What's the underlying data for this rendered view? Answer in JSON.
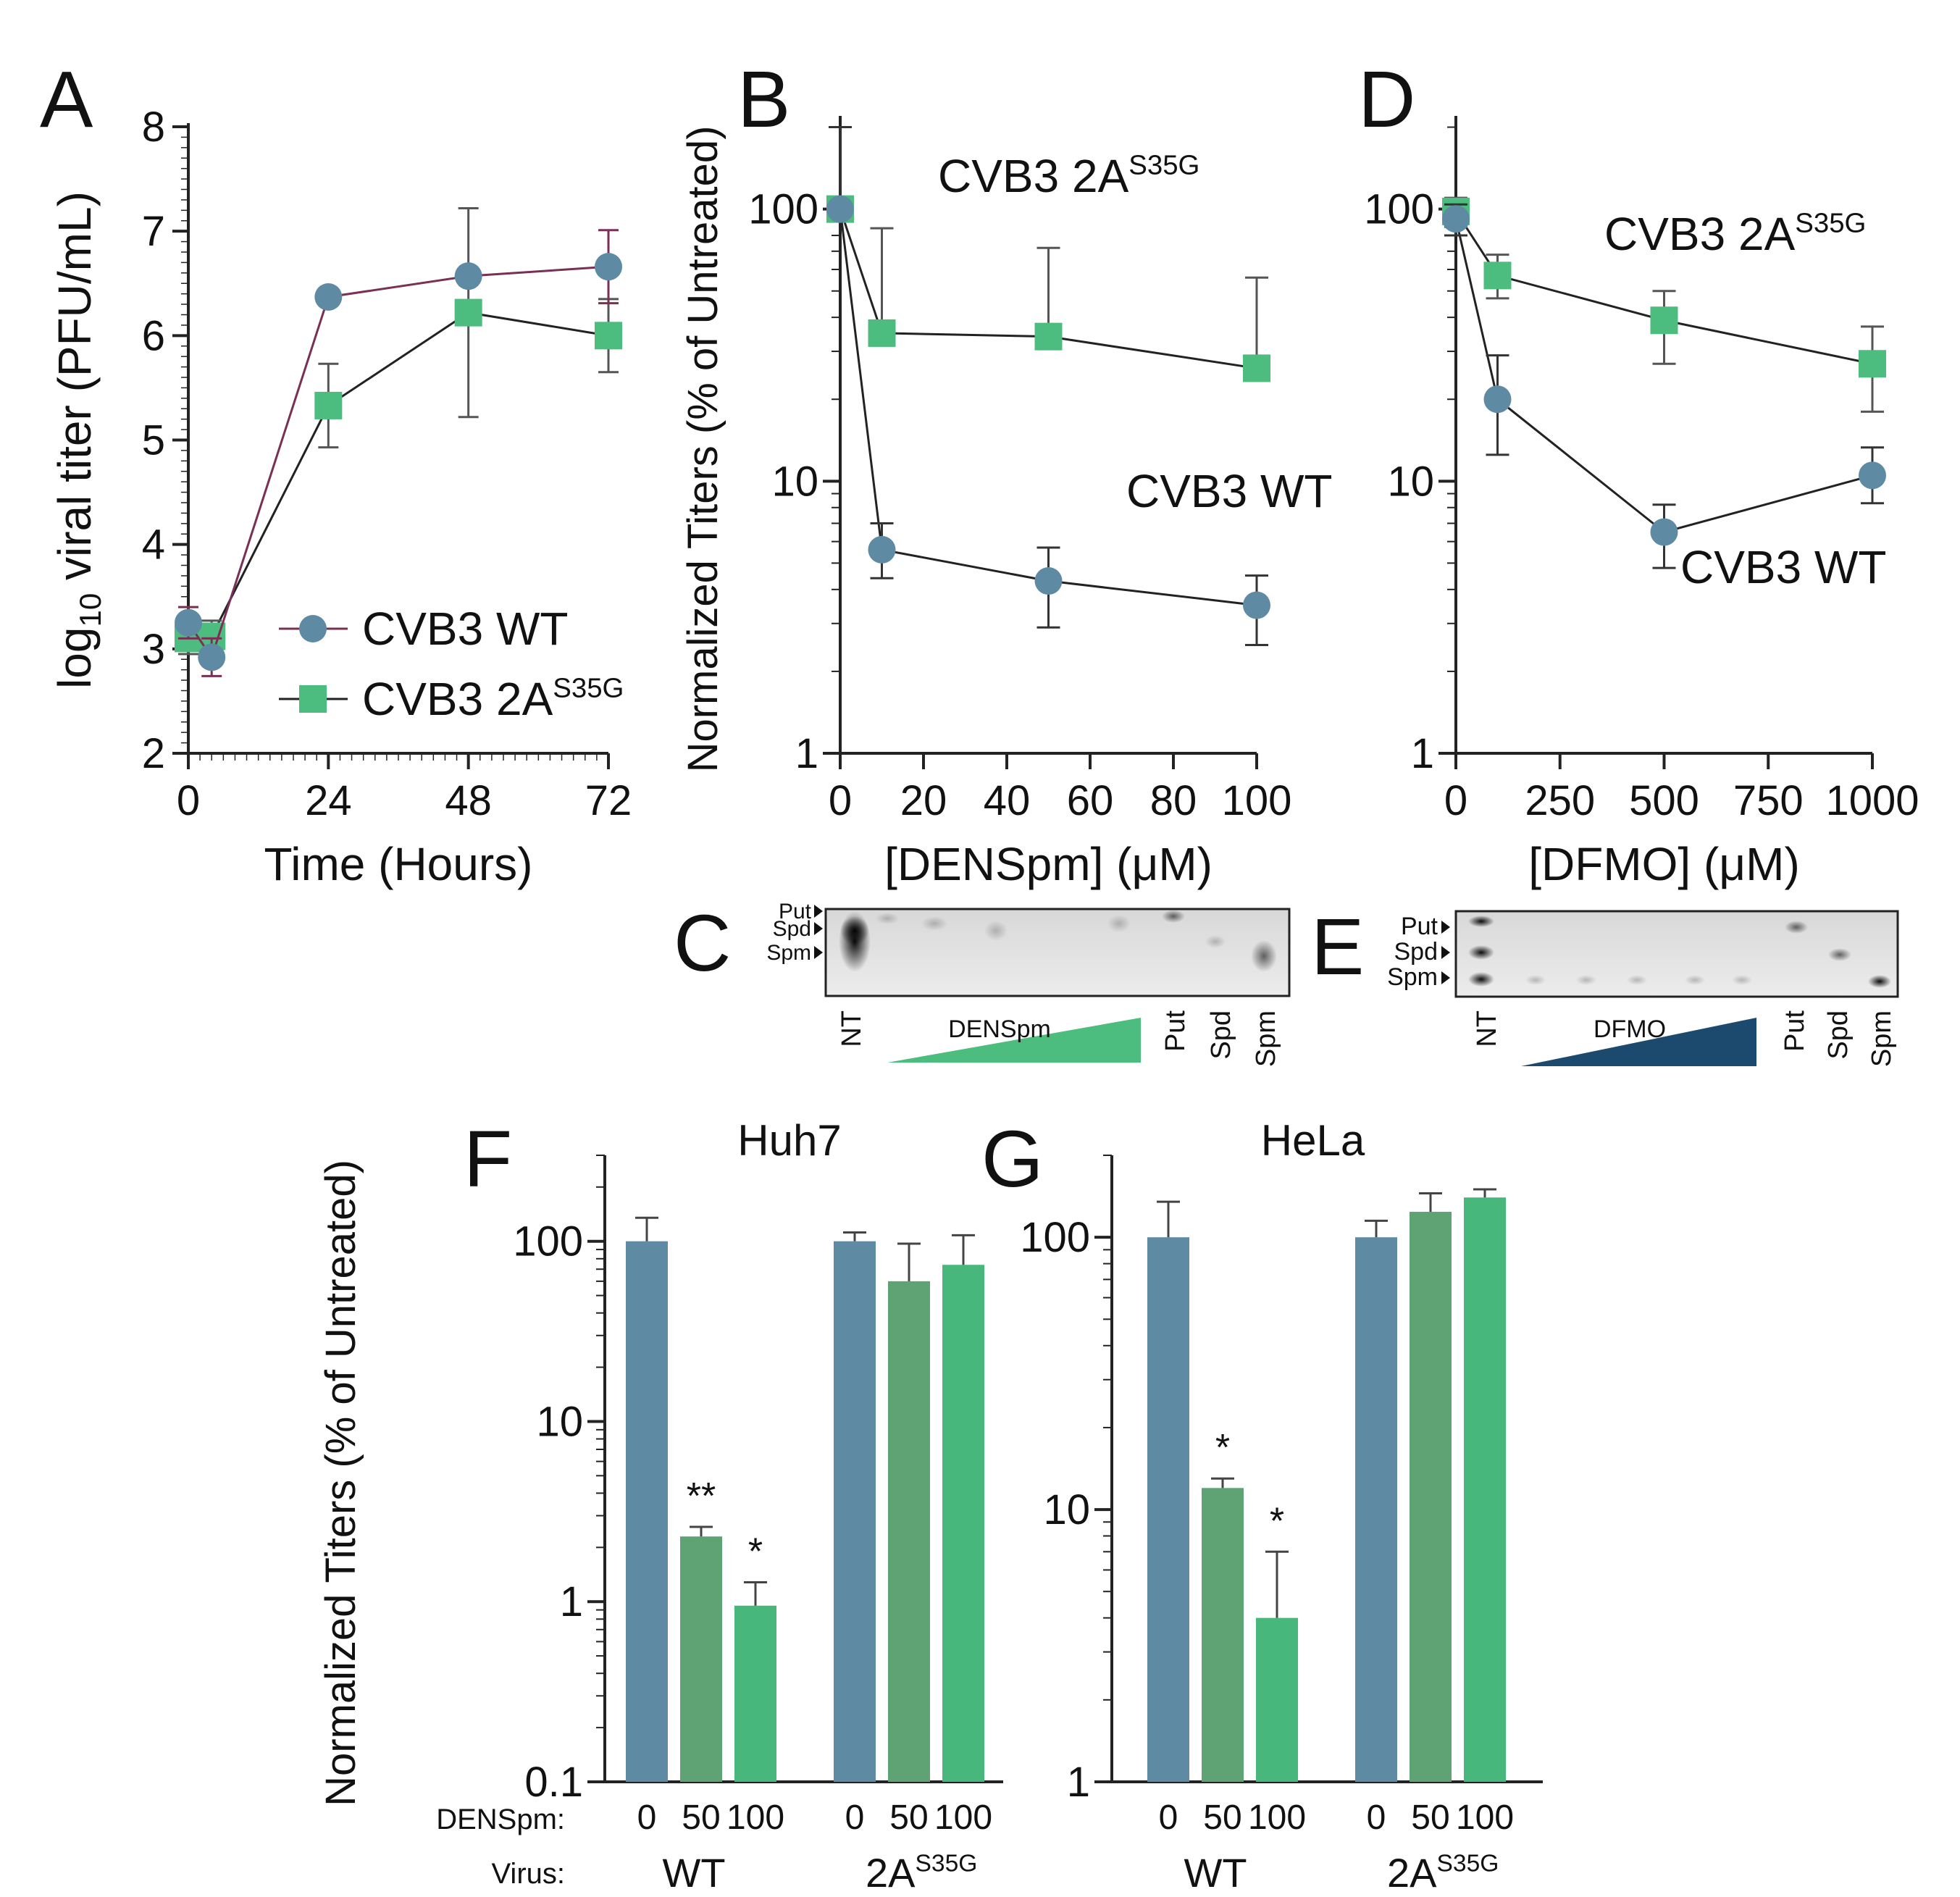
{
  "colors": {
    "wt": "#5e8ba3",
    "wt_line": "#7a2f55",
    "mut": "#4dbd7f",
    "mut_bar": "#48b77c",
    "mid_bar": "#5fa374",
    "dark": "#1c4a6e",
    "axis": "#222222"
  },
  "panels": {
    "A": {
      "letter": "A"
    },
    "B": {
      "letter": "B"
    },
    "C": {
      "letter": "C"
    },
    "D": {
      "letter": "D"
    },
    "E": {
      "letter": "E"
    },
    "F": {
      "letter": "F"
    },
    "G": {
      "letter": "G"
    }
  },
  "gel_C": {
    "markers": [
      "Put",
      "Spd",
      "Spm"
    ],
    "lanes": [
      "NT",
      "Put",
      "Spd",
      "Spm"
    ],
    "gradient_label": "DENSpm"
  },
  "gel_E": {
    "markers": [
      "Put",
      "Spd",
      "Spm"
    ],
    "lanes": [
      "NT",
      "Put",
      "Spd",
      "Spm"
    ],
    "gradient_label": "DFMO"
  },
  "chart_data": [
    {
      "id": "A",
      "type": "line",
      "xlabel": "Time (Hours)",
      "ylabel_pre": "log",
      "ylabel_sub": "10",
      "ylabel_post": " viral titer (PFU/mL)",
      "xlim": [
        0,
        72
      ],
      "ylim": [
        2,
        8
      ],
      "xticks": [
        0,
        24,
        48,
        72
      ],
      "yticks": [
        2,
        3,
        4,
        5,
        6,
        7,
        8
      ],
      "legend_position": "bottom-right",
      "series": [
        {
          "name": "CVB3 WT",
          "marker": "circle",
          "x": [
            0,
            4,
            24,
            48,
            72
          ],
          "y": [
            3.25,
            2.92,
            6.37,
            6.57,
            6.66
          ],
          "err": [
            0.15,
            0.18,
            0.05,
            0.05,
            0.35
          ]
        },
        {
          "name_main": "CVB3 2A",
          "name_sup": "S35G",
          "marker": "square",
          "x": [
            0,
            4,
            24,
            48,
            72
          ],
          "y": [
            3.1,
            3.12,
            5.33,
            6.22,
            6.0
          ],
          "err": [
            0.15,
            0.15,
            0.4,
            1.0,
            0.35
          ]
        }
      ]
    },
    {
      "id": "B",
      "type": "line",
      "scale": "log",
      "xlabel": "[DENSpm] (μM)",
      "ylabel": "Normalized Titers (% of Untreated)",
      "xlim": [
        0,
        100
      ],
      "ylim": [
        1,
        220
      ],
      "xticks": [
        0,
        20,
        40,
        60,
        80,
        100
      ],
      "yticks": [
        1,
        10,
        100
      ],
      "annotations": [
        {
          "main": "CVB3 2A",
          "sup": "S35G"
        },
        {
          "main": "CVB3 WT"
        }
      ],
      "series": [
        {
          "name": "CVB3 2A S35G",
          "marker": "square",
          "x": [
            0,
            10,
            50,
            100
          ],
          "y": [
            100,
            35,
            34,
            26
          ],
          "err_hi": [
            200,
            85,
            72,
            56
          ],
          "err_lo": [
            100,
            35,
            34,
            26
          ]
        },
        {
          "name": "CVB3 WT",
          "marker": "circle",
          "x": [
            0,
            10,
            50,
            100
          ],
          "y": [
            100,
            5.6,
            4.3,
            3.5
          ],
          "err_hi": [
            200,
            7.0,
            5.7,
            4.5
          ],
          "err_lo": [
            100,
            4.4,
            2.9,
            2.5
          ]
        }
      ]
    },
    {
      "id": "D",
      "type": "line",
      "scale": "log",
      "xlabel": "[DFMO] (μM)",
      "ylabel": "",
      "xlim": [
        0,
        1000
      ],
      "ylim": [
        1,
        220
      ],
      "xticks": [
        0,
        250,
        500,
        750,
        1000
      ],
      "yticks": [
        1,
        10,
        100
      ],
      "annotations": [
        {
          "main": "CVB3 2A",
          "sup": "S35G"
        },
        {
          "main": "CVB3 WT"
        }
      ],
      "series": [
        {
          "name": "CVB3 2A S35G",
          "marker": "square",
          "x": [
            0,
            100,
            500,
            1000
          ],
          "y": [
            98,
            57,
            39,
            27
          ],
          "err_hi": [
            110,
            68,
            50,
            37
          ],
          "err_lo": [
            86,
            47,
            27,
            18
          ]
        },
        {
          "name": "CVB3 WT",
          "marker": "circle",
          "x": [
            0,
            100,
            500,
            1000
          ],
          "y": [
            92,
            20,
            6.5,
            10.5
          ],
          "err_hi": [
            104,
            29,
            8.2,
            13.3
          ],
          "err_lo": [
            80,
            12.5,
            4.8,
            8.3
          ]
        }
      ]
    },
    {
      "id": "F",
      "type": "bar",
      "scale": "log",
      "title": "Huh7",
      "ylabel": "Normalized Titers (% of Untreated)",
      "ylim": [
        0.1,
        300
      ],
      "yticks": [
        0.1,
        1,
        10,
        100
      ],
      "row_labels": {
        "densp": "DENSpm:",
        "virus": "Virus:"
      },
      "groups": [
        {
          "label": "WT",
          "doses": [
            "0",
            "50",
            "100"
          ],
          "values": [
            100,
            2.3,
            0.95
          ],
          "err": [
            135,
            2.6,
            1.28
          ],
          "stars": [
            "",
            "**",
            "*"
          ]
        },
        {
          "label_main": "2A",
          "label_sup": "S35G",
          "doses": [
            "0",
            "50",
            "100"
          ],
          "values": [
            100,
            60,
            74
          ],
          "err": [
            112,
            97,
            108
          ],
          "stars": [
            "",
            "",
            ""
          ]
        }
      ]
    },
    {
      "id": "G",
      "type": "bar",
      "scale": "log",
      "title": "HeLa",
      "ylim": [
        1,
        200
      ],
      "yticks": [
        1,
        10,
        100
      ],
      "groups": [
        {
          "label": "WT",
          "doses": [
            "0",
            "50",
            "100"
          ],
          "values": [
            100,
            12,
            4
          ],
          "err": [
            135,
            13,
            7
          ],
          "stars": [
            "",
            "*",
            "*"
          ]
        },
        {
          "label_main": "2A",
          "label_sup": "S35G",
          "doses": [
            "0",
            "50",
            "100"
          ],
          "values": [
            100,
            124,
            140
          ],
          "err": [
            115,
            145,
            150
          ],
          "stars": [
            "",
            "",
            ""
          ]
        }
      ]
    }
  ]
}
